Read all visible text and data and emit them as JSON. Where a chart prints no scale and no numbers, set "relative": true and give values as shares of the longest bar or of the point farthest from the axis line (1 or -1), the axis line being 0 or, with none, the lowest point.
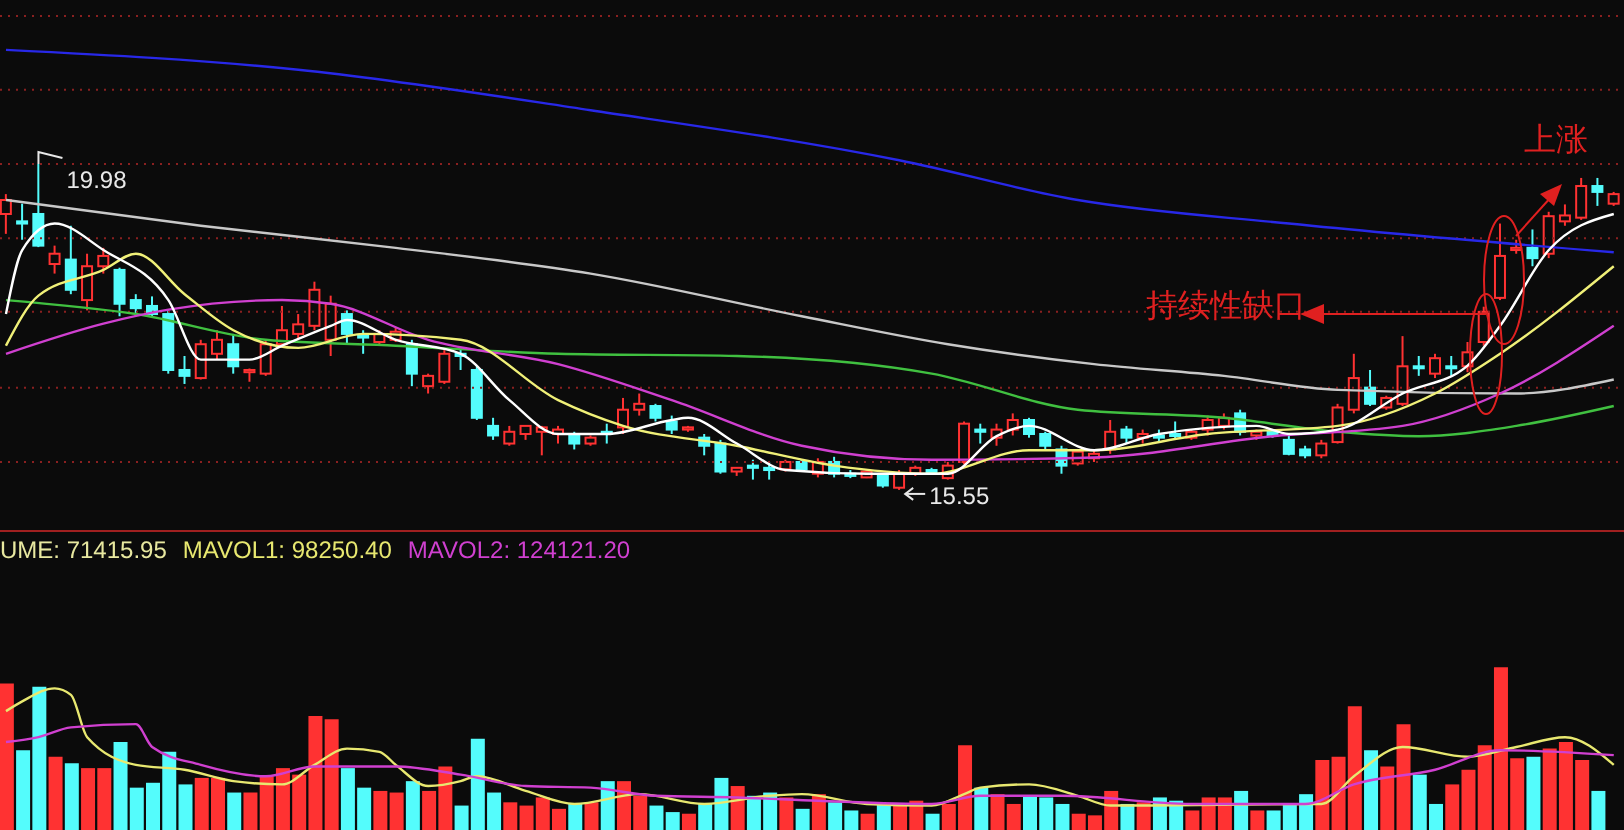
{
  "chart_data": [
    {
      "type": "candlestick",
      "categories": [
        null,
        null,
        null,
        null,
        null,
        null,
        null,
        null,
        null,
        null,
        null,
        null,
        null,
        null,
        null,
        null,
        null,
        null,
        null,
        null,
        null,
        null,
        null,
        null,
        null,
        null,
        null,
        null,
        null,
        null,
        null,
        null,
        null,
        null,
        null,
        null,
        null,
        null,
        null,
        null,
        null,
        null,
        null,
        null,
        null,
        null,
        null,
        null,
        null,
        null,
        null,
        null,
        null,
        null,
        null,
        null,
        null,
        null,
        null,
        null,
        null,
        null,
        null,
        null,
        null,
        null,
        null,
        null,
        null,
        null,
        null,
        null,
        null,
        null,
        null,
        null,
        null,
        null,
        null,
        null,
        null,
        null,
        null,
        null,
        null,
        null,
        null,
        null,
        null,
        null,
        null,
        null,
        null,
        null,
        null,
        null,
        null,
        null,
        null,
        null
      ],
      "ohlc": [
        [
          19.3,
          19.57,
          19.03,
          19.49
        ],
        [
          19.2,
          19.44,
          18.95,
          19.17
        ],
        [
          19.3,
          19.98,
          18.85,
          18.87
        ],
        [
          18.62,
          18.87,
          18.49,
          18.76
        ],
        [
          18.68,
          19.14,
          18.21,
          18.27
        ],
        [
          18.13,
          18.76,
          17.99,
          18.59
        ],
        [
          18.59,
          18.84,
          18.49,
          18.73
        ],
        [
          18.54,
          18.57,
          17.91,
          18.08
        ],
        [
          18.13,
          18.21,
          17.91,
          18.02
        ],
        [
          18.05,
          18.18,
          17.91,
          17.94
        ],
        [
          17.94,
          17.99,
          17.13,
          17.18
        ],
        [
          17.18,
          17.37,
          16.99,
          17.1
        ],
        [
          17.07,
          17.59,
          17.05,
          17.53
        ],
        [
          17.4,
          17.72,
          17.32,
          17.59
        ],
        [
          17.53,
          17.67,
          17.13,
          17.23
        ],
        [
          17.15,
          17.2,
          17.02,
          17.18
        ],
        [
          17.13,
          17.59,
          17.1,
          17.53
        ],
        [
          17.53,
          18.05,
          17.51,
          17.72
        ],
        [
          17.67,
          17.94,
          17.59,
          17.8
        ],
        [
          17.78,
          18.38,
          17.72,
          18.27
        ],
        [
          17.59,
          18.19,
          17.37,
          18.08
        ],
        [
          17.94,
          17.99,
          17.53,
          17.67
        ],
        [
          17.65,
          17.72,
          17.4,
          17.62
        ],
        [
          17.56,
          17.72,
          17.53,
          17.67
        ],
        [
          17.59,
          17.75,
          17.56,
          17.7
        ],
        [
          17.53,
          17.59,
          16.96,
          17.13
        ],
        [
          16.96,
          17.13,
          16.86,
          17.1
        ],
        [
          17.02,
          17.45,
          16.99,
          17.4
        ],
        [
          17.4,
          17.48,
          17.18,
          17.37
        ],
        [
          17.18,
          17.23,
          16.5,
          16.53
        ],
        [
          16.42,
          16.53,
          16.23,
          16.29
        ],
        [
          16.18,
          16.42,
          16.15,
          16.34
        ],
        [
          16.31,
          16.42,
          16.23,
          16.42
        ],
        [
          16.34,
          16.42,
          16.02,
          16.4
        ],
        [
          16.31,
          16.42,
          16.18,
          16.37
        ],
        [
          16.29,
          16.34,
          16.1,
          16.18
        ],
        [
          16.18,
          16.29,
          16.15,
          16.26
        ],
        [
          16.34,
          16.45,
          16.18,
          16.31
        ],
        [
          16.4,
          16.8,
          16.31,
          16.64
        ],
        [
          16.64,
          16.86,
          16.56,
          16.72
        ],
        [
          16.69,
          16.72,
          16.48,
          16.53
        ],
        [
          16.48,
          16.56,
          16.31,
          16.37
        ],
        [
          16.37,
          16.42,
          16.34,
          16.4
        ],
        [
          16.26,
          16.31,
          16.02,
          16.15
        ],
        [
          16.18,
          16.23,
          15.77,
          15.8
        ],
        [
          15.8,
          15.85,
          15.74,
          15.85
        ],
        [
          15.88,
          15.96,
          15.69,
          15.85
        ],
        [
          15.85,
          15.93,
          15.69,
          15.82
        ],
        [
          15.83,
          15.96,
          15.8,
          15.93
        ],
        [
          15.93,
          15.96,
          15.8,
          15.83
        ],
        [
          15.77,
          15.98,
          15.72,
          15.93
        ],
        [
          15.93,
          16.0,
          15.72,
          15.77
        ],
        [
          15.77,
          15.82,
          15.71,
          15.74
        ],
        [
          15.72,
          15.82,
          15.71,
          15.8
        ],
        [
          15.74,
          15.77,
          15.58,
          15.61
        ],
        [
          15.58,
          15.82,
          15.55,
          15.77
        ],
        [
          15.77,
          15.88,
          15.74,
          15.85
        ],
        [
          15.82,
          15.85,
          15.77,
          15.8
        ],
        [
          15.71,
          15.93,
          15.69,
          15.88
        ],
        [
          15.93,
          16.48,
          15.9,
          16.45
        ],
        [
          16.37,
          16.45,
          16.18,
          16.34
        ],
        [
          16.26,
          16.45,
          16.15,
          16.37
        ],
        [
          16.37,
          16.59,
          16.29,
          16.5
        ],
        [
          16.5,
          16.53,
          16.26,
          16.31
        ],
        [
          16.31,
          16.34,
          16.1,
          16.15
        ],
        [
          16.1,
          16.15,
          15.77,
          15.88
        ],
        [
          15.91,
          16.1,
          15.88,
          16.07
        ],
        [
          15.98,
          16.1,
          15.93,
          16.04
        ],
        [
          16.1,
          16.5,
          16.04,
          16.34
        ],
        [
          16.37,
          16.42,
          16.18,
          16.26
        ],
        [
          16.26,
          16.37,
          16.18,
          16.31
        ],
        [
          16.29,
          16.37,
          16.2,
          16.26
        ],
        [
          16.31,
          16.48,
          16.23,
          16.29
        ],
        [
          16.26,
          16.37,
          16.23,
          16.34
        ],
        [
          16.37,
          16.56,
          16.29,
          16.5
        ],
        [
          16.42,
          16.59,
          16.37,
          16.53
        ],
        [
          16.59,
          16.64,
          16.29,
          16.34
        ],
        [
          16.29,
          16.37,
          16.23,
          16.34
        ],
        [
          16.34,
          16.37,
          16.26,
          16.29
        ],
        [
          16.23,
          16.31,
          16.02,
          16.04
        ],
        [
          16.1,
          16.15,
          15.98,
          16.02
        ],
        [
          16.02,
          16.23,
          15.98,
          16.18
        ],
        [
          16.2,
          16.72,
          16.18,
          16.67
        ],
        [
          16.64,
          17.4,
          16.59,
          17.07
        ],
        [
          16.94,
          17.18,
          16.69,
          16.72
        ],
        [
          16.67,
          16.83,
          16.64,
          16.8
        ],
        [
          16.72,
          17.64,
          16.69,
          17.23
        ],
        [
          17.23,
          17.37,
          17.1,
          17.21
        ],
        [
          17.13,
          17.4,
          17.07,
          17.34
        ],
        [
          17.23,
          17.37,
          17.1,
          17.21
        ],
        [
          17.23,
          17.56,
          17.15,
          17.42
        ],
        [
          17.56,
          18.04,
          17.51,
          17.97
        ],
        [
          18.16,
          19.17,
          18.13,
          18.73
        ],
        [
          18.81,
          18.95,
          18.76,
          18.84
        ],
        [
          18.84,
          19.09,
          18.59,
          18.7
        ],
        [
          18.76,
          19.33,
          18.7,
          19.27
        ],
        [
          19.2,
          19.43,
          19.14,
          19.28
        ],
        [
          19.25,
          19.79,
          19.22,
          19.68
        ],
        [
          19.68,
          19.79,
          19.41,
          19.6
        ],
        [
          19.44,
          19.6,
          19.41,
          19.57
        ]
      ],
      "colors": [
        "#ff3232",
        "#54fcfc",
        "#54fcfc",
        "#ff3232",
        "#54fcfc",
        "#ff3232",
        "#ff3232",
        "#54fcfc",
        "#54fcfc",
        "#54fcfc",
        "#54fcfc",
        "#54fcfc",
        "#ff3232",
        "#ff3232",
        "#54fcfc",
        "#ff3232",
        "#ff3232",
        "#ff3232",
        "#ff3232",
        "#ff3232",
        "#ff3232",
        "#54fcfc",
        "#54fcfc",
        "#ff3232",
        "#ff3232",
        "#54fcfc",
        "#ff3232",
        "#ff3232",
        "#54fcfc",
        "#54fcfc",
        "#54fcfc",
        "#ff3232",
        "#ff3232",
        "#ff3232",
        "#ff3232",
        "#54fcfc",
        "#ff3232",
        "#54fcfc",
        "#ff3232",
        "#ff3232",
        "#54fcfc",
        "#54fcfc",
        "#ff3232",
        "#54fcfc",
        "#54fcfc",
        "#ff3232",
        "#54fcfc",
        "#54fcfc",
        "#ff3232",
        "#54fcfc",
        "#ff3232",
        "#54fcfc",
        "#54fcfc",
        "#ff3232",
        "#54fcfc",
        "#ff3232",
        "#ff3232",
        "#54fcfc",
        "#ff3232",
        "#ff3232",
        "#54fcfc",
        "#ff3232",
        "#ff3232",
        "#54fcfc",
        "#54fcfc",
        "#54fcfc",
        "#ff3232",
        "#ff3232",
        "#ff3232",
        "#54fcfc",
        "#ff3232",
        "#54fcfc",
        "#54fcfc",
        "#ff3232",
        "#ff3232",
        "#ff3232",
        "#54fcfc",
        "#ff3232",
        "#54fcfc",
        "#54fcfc",
        "#54fcfc",
        "#ff3232",
        "#ff3232",
        "#ff3232",
        "#54fcfc",
        "#ff3232",
        "#ff3232",
        "#54fcfc",
        "#ff3232",
        "#54fcfc",
        "#ff3232",
        "#ff3232",
        "#ff3232",
        "#ff3232",
        "#54fcfc",
        "#ff3232",
        "#ff3232",
        "#ff3232",
        "#54fcfc",
        "#ff3232"
      ],
      "yticks": [
        {
          "value": 21.99,
          "label": null
        },
        {
          "value": 20.99,
          "label": null
        },
        {
          "value": 19.98,
          "label": null
        },
        {
          "value": 18.97,
          "label": null
        },
        {
          "value": 17.97,
          "label": null
        },
        {
          "value": 16.94,
          "label": null
        },
        {
          "value": 15.93,
          "label": null
        }
      ],
      "grid": "y",
      "tick_labels": false,
      "annotations": [
        "19.98",
        "15.55",
        "持续性缺口",
        "上涨"
      ],
      "series": [
        {
          "type": "line",
          "color": "#2828e8",
          "values": [
            21.53,
            null,
            null,
            null,
            null,
            null,
            null,
            null,
            null,
            null,
            null,
            null,
            null,
            null,
            null,
            null,
            null,
            null,
            21.26,
            null,
            null,
            null,
            null,
            null,
            null,
            null,
            null,
            null,
            null,
            null,
            null,
            null,
            null,
            null,
            null,
            null,
            20.71,
            null,
            null,
            null,
            null,
            null,
            null,
            null,
            null,
            null,
            null,
            null,
            null,
            null,
            null,
            null,
            null,
            null,
            null,
            20.03,
            null,
            null,
            null,
            null,
            null,
            null,
            null,
            null,
            null,
            null,
            19.49,
            null,
            null,
            null,
            null,
            null,
            null,
            null,
            null,
            null,
            null,
            null,
            null,
            19.17,
            null,
            null,
            null,
            null,
            null,
            null,
            null,
            null,
            null,
            null,
            null,
            null,
            null,
            null,
            null,
            null,
            null,
            null,
            null,
            18.78
          ]
        },
        {
          "type": "line",
          "color": "#c8c8c8",
          "values": [
            19.49,
            null,
            null,
            null,
            null,
            null,
            null,
            null,
            null,
            null,
            null,
            null,
            19.14,
            null,
            null,
            null,
            null,
            null,
            null,
            null,
            null,
            null,
            null,
            null,
            18.84,
            null,
            null,
            null,
            null,
            null,
            null,
            null,
            null,
            null,
            null,
            null,
            18.49,
            null,
            null,
            null,
            null,
            null,
            null,
            null,
            null,
            null,
            null,
            null,
            null,
            17.91,
            null,
            null,
            null,
            null,
            null,
            null,
            null,
            null,
            17.53,
            null,
            null,
            null,
            null,
            null,
            null,
            null,
            null,
            17.26,
            null,
            null,
            null,
            null,
            null,
            null,
            null,
            17.1,
            null,
            null,
            null,
            null,
            null,
            null,
            16.91,
            null,
            null,
            null,
            null,
            null,
            null,
            null,
            null,
            null,
            null,
            16.86,
            null,
            null,
            null,
            null,
            null,
            17.05
          ]
        },
        {
          "type": "line",
          "color": "#40c040",
          "values": [
            18.13,
            null,
            null,
            null,
            null,
            null,
            null,
            null,
            17.94,
            null,
            null,
            null,
            null,
            null,
            null,
            null,
            17.59,
            null,
            null,
            null,
            null,
            null,
            null,
            null,
            17.51,
            null,
            null,
            null,
            null,
            null,
            null,
            null,
            null,
            null,
            17.4,
            null,
            null,
            null,
            null,
            null,
            null,
            null,
            null,
            null,
            null,
            17.37,
            null,
            null,
            null,
            null,
            null,
            null,
            null,
            null,
            null,
            null,
            null,
            17.13,
            null,
            null,
            null,
            null,
            null,
            null,
            null,
            null,
            16.64,
            null,
            null,
            null,
            null,
            null,
            null,
            null,
            null,
            16.53,
            null,
            null,
            null,
            null,
            null,
            null,
            16.34,
            null,
            null,
            null,
            null,
            16.28,
            null,
            null,
            null,
            null,
            null,
            16.42,
            null,
            null,
            null,
            null,
            null,
            16.69
          ]
        },
        {
          "type": "line",
          "color": "#d040d0",
          "values": [
            17.4,
            null,
            null,
            null,
            null,
            null,
            17.81,
            null,
            null,
            null,
            18.0,
            null,
            null,
            null,
            null,
            null,
            null,
            18.13,
            null,
            null,
            18.08,
            null,
            null,
            null,
            null,
            null,
            17.59,
            null,
            null,
            null,
            null,
            null,
            null,
            null,
            17.26,
            null,
            null,
            null,
            null,
            null,
            null,
            16.77,
            null,
            null,
            null,
            null,
            null,
            null,
            null,
            16.15,
            null,
            null,
            null,
            null,
            null,
            null,
            null,
            15.96,
            null,
            null,
            null,
            null,
            null,
            null,
            null,
            null,
            null,
            15.99,
            null,
            null,
            null,
            null,
            null,
            null,
            null,
            null,
            null,
            null,
            16.28,
            null,
            null,
            null,
            null,
            null,
            null,
            null,
            16.42,
            null,
            null,
            null,
            null,
            null,
            16.86,
            null,
            null,
            null,
            null,
            null,
            null,
            17.78
          ]
        },
        {
          "type": "line",
          "color": "#f0f078",
          "values": [
            17.51,
            null,
            18.19,
            null,
            null,
            null,
            18.54,
            null,
            18.76,
            null,
            null,
            18.21,
            null,
            null,
            17.72,
            null,
            null,
            null,
            17.48,
            null,
            null,
            null,
            17.67,
            null,
            null,
            null,
            null,
            null,
            17.59,
            null,
            null,
            null,
            null,
            null,
            16.77,
            null,
            null,
            null,
            16.42,
            null,
            null,
            null,
            null,
            null,
            null,
            16.15,
            null,
            null,
            null,
            null,
            null,
            15.88,
            null,
            null,
            null,
            null,
            null,
            15.77,
            null,
            null,
            null,
            null,
            null,
            16.09,
            null,
            null,
            null,
            16.09,
            null,
            null,
            null,
            null,
            null,
            null,
            16.31,
            null,
            null,
            null,
            null,
            null,
            null,
            null,
            16.42,
            null,
            null,
            null,
            null,
            null,
            16.86,
            null,
            null,
            null,
            17.4,
            null,
            null,
            null,
            null,
            null,
            null,
            18.59
          ]
        },
        {
          "type": "line",
          "color": "#ffffff",
          "values": [
            17.94,
            18.81,
            null,
            19.17,
            null,
            null,
            18.81,
            null,
            null,
            null,
            18.13,
            null,
            17.32,
            null,
            null,
            17.32,
            null,
            17.51,
            null,
            null,
            17.78,
            17.86,
            null,
            null,
            17.59,
            null,
            null,
            null,
            17.4,
            null,
            null,
            16.77,
            null,
            null,
            16.31,
            null,
            null,
            16.31,
            null,
            null,
            null,
            16.5,
            16.53,
            null,
            null,
            16.18,
            null,
            null,
            15.82,
            null,
            null,
            null,
            null,
            15.77,
            null,
            null,
            null,
            null,
            15.77,
            null,
            null,
            16.28,
            null,
            16.42,
            null,
            null,
            null,
            16.09,
            null,
            null,
            null,
            16.31,
            null,
            null,
            null,
            null,
            null,
            16.42,
            null,
            16.31,
            null,
            null,
            16.37,
            null,
            null,
            null,
            16.86,
            null,
            null,
            null,
            17.24,
            null,
            17.78,
            null,
            null,
            18.81,
            null,
            null,
            null,
            19.3
          ]
        }
      ]
    },
    {
      "type": "bar",
      "relative": true,
      "tick_labels": false,
      "legend": "top left",
      "annotations": [
        "UME: 71415.95"
      ],
      "categories": [
        null,
        null,
        null,
        null,
        null,
        null,
        null,
        null,
        null,
        null,
        null,
        null,
        null,
        null,
        null,
        null,
        null,
        null,
        null,
        null,
        null,
        null,
        null,
        null,
        null,
        null,
        null,
        null,
        null,
        null,
        null,
        null,
        null,
        null,
        null,
        null,
        null,
        null,
        null,
        null,
        null,
        null,
        null,
        null,
        null,
        null,
        null,
        null,
        null,
        null,
        null,
        null,
        null,
        null,
        null,
        null,
        null,
        null,
        null,
        null,
        null,
        null,
        null,
        null,
        null,
        null,
        null,
        null,
        null,
        null,
        null,
        null,
        null,
        null,
        null,
        null,
        null,
        null,
        null,
        null,
        null,
        null,
        null,
        null,
        null,
        null,
        null,
        null,
        null,
        null,
        null,
        null,
        null,
        null,
        null,
        null,
        null,
        null,
        null,
        null
      ],
      "series": [
        {
          "type": "bar",
          "values": [
            0.9,
            0.49,
            0.88,
            0.45,
            0.41,
            0.38,
            0.38,
            0.54,
            0.26,
            0.29,
            0.48,
            0.28,
            0.32,
            0.32,
            0.23,
            0.23,
            0.33,
            0.38,
            0.34,
            0.7,
            0.68,
            0.38,
            0.26,
            0.24,
            0.23,
            0.3,
            0.24,
            0.39,
            0.15,
            0.56,
            0.23,
            0.17,
            0.15,
            0.2,
            0.13,
            0.16,
            0.17,
            0.3,
            0.3,
            0.21,
            0.15,
            0.11,
            0.1,
            0.16,
            0.32,
            0.27,
            0.21,
            0.23,
            0.2,
            0.13,
            0.22,
            0.17,
            0.12,
            0.1,
            0.16,
            0.15,
            0.18,
            0.1,
            0.16,
            0.52,
            0.26,
            0.22,
            0.16,
            0.21,
            0.2,
            0.16,
            0.1,
            0.09,
            0.24,
            0.16,
            0.17,
            0.2,
            0.18,
            0.12,
            0.2,
            0.2,
            0.24,
            0.12,
            0.12,
            0.16,
            0.22,
            0.43,
            0.45,
            0.76,
            0.49,
            0.39,
            0.65,
            0.34,
            0.16,
            0.28,
            0.37,
            0.52,
            1,
            0.44,
            0.45,
            0.5,
            0.54,
            0.43,
            0.24,
            null
          ],
          "colors": [
            "#ff3232",
            "#54fcfc",
            "#54fcfc",
            "#ff3232",
            "#54fcfc",
            "#ff3232",
            "#ff3232",
            "#54fcfc",
            "#54fcfc",
            "#54fcfc",
            "#54fcfc",
            "#54fcfc",
            "#ff3232",
            "#ff3232",
            "#54fcfc",
            "#ff3232",
            "#ff3232",
            "#ff3232",
            "#ff3232",
            "#ff3232",
            "#ff3232",
            "#54fcfc",
            "#54fcfc",
            "#ff3232",
            "#ff3232",
            "#54fcfc",
            "#ff3232",
            "#ff3232",
            "#54fcfc",
            "#54fcfc",
            "#54fcfc",
            "#ff3232",
            "#ff3232",
            "#ff3232",
            "#ff3232",
            "#54fcfc",
            "#ff3232",
            "#54fcfc",
            "#ff3232",
            "#ff3232",
            "#54fcfc",
            "#54fcfc",
            "#ff3232",
            "#54fcfc",
            "#54fcfc",
            "#ff3232",
            "#54fcfc",
            "#54fcfc",
            "#ff3232",
            "#54fcfc",
            "#ff3232",
            "#54fcfc",
            "#54fcfc",
            "#ff3232",
            "#54fcfc",
            "#ff3232",
            "#ff3232",
            "#54fcfc",
            "#ff3232",
            "#ff3232",
            "#54fcfc",
            "#ff3232",
            "#ff3232",
            "#54fcfc",
            "#54fcfc",
            "#54fcfc",
            "#ff3232",
            "#ff3232",
            "#ff3232",
            "#54fcfc",
            "#ff3232",
            "#54fcfc",
            "#54fcfc",
            "#ff3232",
            "#ff3232",
            "#ff3232",
            "#54fcfc",
            "#ff3232",
            "#54fcfc",
            "#54fcfc",
            "#54fcfc",
            "#ff3232",
            "#ff3232",
            "#ff3232",
            "#54fcfc",
            "#ff3232",
            "#ff3232",
            "#54fcfc",
            "#54fcfc",
            "#ff3232",
            "#ff3232",
            "#ff3232",
            "#ff3232",
            "#ff3232",
            "#54fcfc",
            "#ff3232",
            "#ff3232",
            "#ff3232",
            "#54fcfc",
            "#ff3232"
          ]
        },
        {
          "type": "line",
          "name": "MAVOL1: 98250.40",
          "color": "#e8e870",
          "values": [
            0.73,
            0.79,
            null,
            0.87,
            0.83,
            0.57,
            null,
            null,
            0.4,
            null,
            null,
            0.37,
            null,
            null,
            0.3,
            null,
            null,
            0.28,
            null,
            0.4,
            null,
            0.5,
            null,
            0.48,
            0.4,
            null,
            0.27,
            null,
            0.3,
            0.33,
            null,
            null,
            0.24,
            null,
            null,
            0.16,
            null,
            null,
            null,
            0.22,
            null,
            null,
            null,
            0.16,
            null,
            null,
            null,
            0.21,
            null,
            0.22,
            null,
            null,
            null,
            0.16,
            null,
            null,
            null,
            0.15,
            null,
            0.22,
            0.26,
            null,
            null,
            0.28,
            null,
            null,
            0.21,
            null,
            0.15,
            null,
            null,
            null,
            null,
            null,
            null,
            null,
            null,
            null,
            null,
            null,
            null,
            0.16,
            null,
            0.33,
            null,
            null,
            0.51,
            null,
            null,
            null,
            0.45,
            null,
            null,
            0.51,
            null,
            null,
            0.57,
            null,
            null,
            0.4
          ]
        },
        {
          "type": "line",
          "name": "MAVOL2: 124121.20",
          "color": "#d040d0",
          "values": [
            0.54,
            null,
            0.57,
            null,
            0.63,
            null,
            null,
            null,
            0.65,
            0.51,
            null,
            null,
            0.4,
            null,
            null,
            null,
            0.33,
            null,
            null,
            0.39,
            null,
            null,
            null,
            null,
            0.39,
            null,
            null,
            null,
            0.34,
            null,
            null,
            null,
            0.27,
            null,
            null,
            null,
            0.26,
            null,
            null,
            null,
            0.21,
            null,
            null,
            null,
            null,
            0.2,
            null,
            null,
            null,
            null,
            0.18,
            null,
            null,
            null,
            null,
            null,
            null,
            0.16,
            null,
            null,
            0.21,
            null,
            null,
            null,
            null,
            0.21,
            null,
            null,
            null,
            null,
            null,
            null,
            null,
            0.16,
            null,
            null,
            null,
            null,
            null,
            null,
            0.16,
            null,
            null,
            0.28,
            null,
            null,
            null,
            null,
            0.37,
            null,
            null,
            null,
            0.49,
            null,
            null,
            null,
            null,
            null,
            null,
            0.46
          ]
        }
      ]
    }
  ]
}
